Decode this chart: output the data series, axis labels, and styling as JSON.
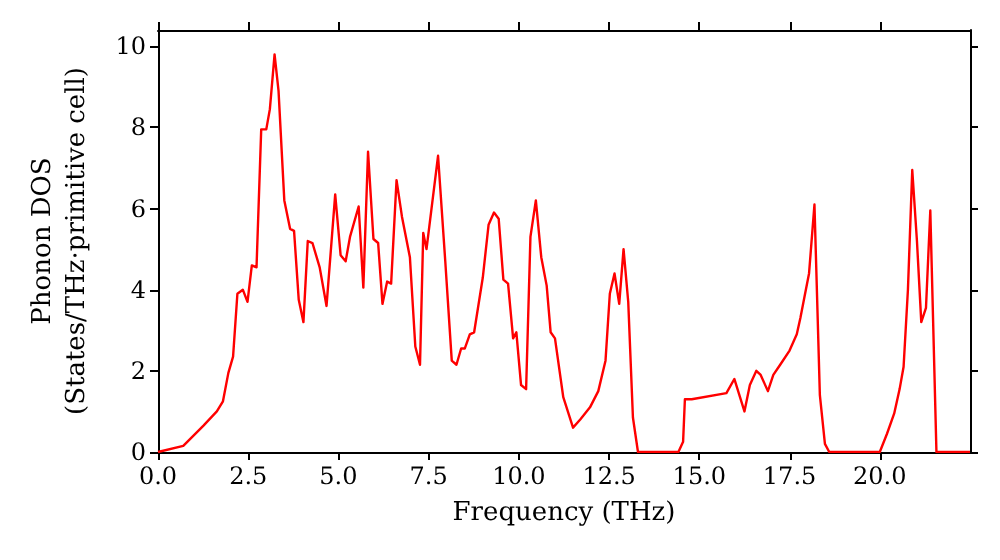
{
  "chart_data": {
    "type": "line",
    "xlabel": "Frequency (THz)",
    "ylabel": "Phonon DOS\n(States/THz·primitive cell)",
    "xlim": [
      0,
      22.5
    ],
    "ylim": [
      0,
      10.4
    ],
    "xticks": [
      {
        "value": 0,
        "label": "0.0"
      },
      2.5,
      {
        "value": 5,
        "label": "5.0"
      },
      7.5,
      {
        "value": 10,
        "label": "10.0"
      },
      12.5,
      {
        "value": 15,
        "label": "15.0"
      },
      17.5,
      {
        "value": 20,
        "label": "20.0"
      }
    ],
    "yticks": [
      0,
      2,
      4,
      6,
      8,
      10
    ],
    "grid": false,
    "marker": "none",
    "line_style": "solid",
    "series": [
      {
        "color": "#ff0000",
        "x": [
          0,
          0.7,
          1.26,
          1.63,
          1.8,
          1.95,
          2.08,
          2.2,
          2.35,
          2.48,
          2.6,
          2.73,
          2.86,
          3.0,
          3.1,
          3.23,
          3.34,
          3.5,
          3.66,
          3.77,
          3.9,
          4.03,
          4.15,
          4.28,
          4.48,
          4.67,
          4.91,
          5.06,
          5.2,
          5.32,
          5.56,
          5.69,
          5.82,
          5.97,
          6.1,
          6.22,
          6.35,
          6.46,
          6.61,
          6.76,
          6.98,
          7.13,
          7.26,
          7.35,
          7.44,
          7.76,
          7.96,
          8.14,
          8.27,
          8.4,
          8.5,
          8.64,
          8.76,
          9.0,
          9.16,
          9.31,
          9.44,
          9.57,
          9.7,
          9.84,
          9.93,
          10.06,
          10.2,
          10.32,
          10.47,
          10.62,
          10.77,
          10.88,
          11.0,
          11.23,
          11.5,
          11.7,
          11.97,
          12.2,
          12.4,
          12.52,
          12.65,
          12.78,
          12.9,
          13.03,
          13.16,
          13.3,
          14.42,
          14.55,
          14.6,
          14.79,
          15.75,
          15.97,
          16.25,
          16.4,
          16.58,
          16.7,
          16.9,
          17.05,
          17.24,
          17.5,
          17.7,
          17.8,
          17.93,
          18.04,
          18.19,
          18.34,
          18.48,
          18.6,
          20.0,
          20.2,
          20.4,
          20.55,
          20.66,
          20.78,
          20.9,
          21.03,
          21.15,
          21.28,
          21.4,
          21.57,
          22.5
        ],
        "values": [
          0,
          0.15,
          0.65,
          1.0,
          1.25,
          1.95,
          2.35,
          3.9,
          4.0,
          3.7,
          4.6,
          4.55,
          7.95,
          7.95,
          8.45,
          9.8,
          8.9,
          6.2,
          5.5,
          5.45,
          3.75,
          3.2,
          5.2,
          5.15,
          4.55,
          3.6,
          6.35,
          4.85,
          4.7,
          5.3,
          6.05,
          4.05,
          7.4,
          5.25,
          5.15,
          3.65,
          4.2,
          4.15,
          6.7,
          5.8,
          4.8,
          2.6,
          2.15,
          5.4,
          5.0,
          7.3,
          4.7,
          2.25,
          2.15,
          2.55,
          2.55,
          2.9,
          2.95,
          4.3,
          5.6,
          5.9,
          5.75,
          4.25,
          4.15,
          2.8,
          2.95,
          1.65,
          1.55,
          5.3,
          6.2,
          4.8,
          4.1,
          2.95,
          2.8,
          1.35,
          0.6,
          0.8,
          1.1,
          1.5,
          2.25,
          3.9,
          4.4,
          3.65,
          5.0,
          3.7,
          0.85,
          0,
          0,
          0.25,
          1.3,
          1.3,
          1.45,
          1.8,
          1.0,
          1.65,
          2.0,
          1.9,
          1.5,
          1.9,
          2.15,
          2.5,
          2.9,
          3.3,
          3.9,
          4.4,
          6.1,
          1.4,
          0.2,
          0,
          0,
          0.45,
          0.95,
          1.55,
          2.1,
          4.0,
          6.95,
          5.2,
          3.2,
          3.55,
          5.95,
          0,
          0
        ]
      }
    ]
  }
}
